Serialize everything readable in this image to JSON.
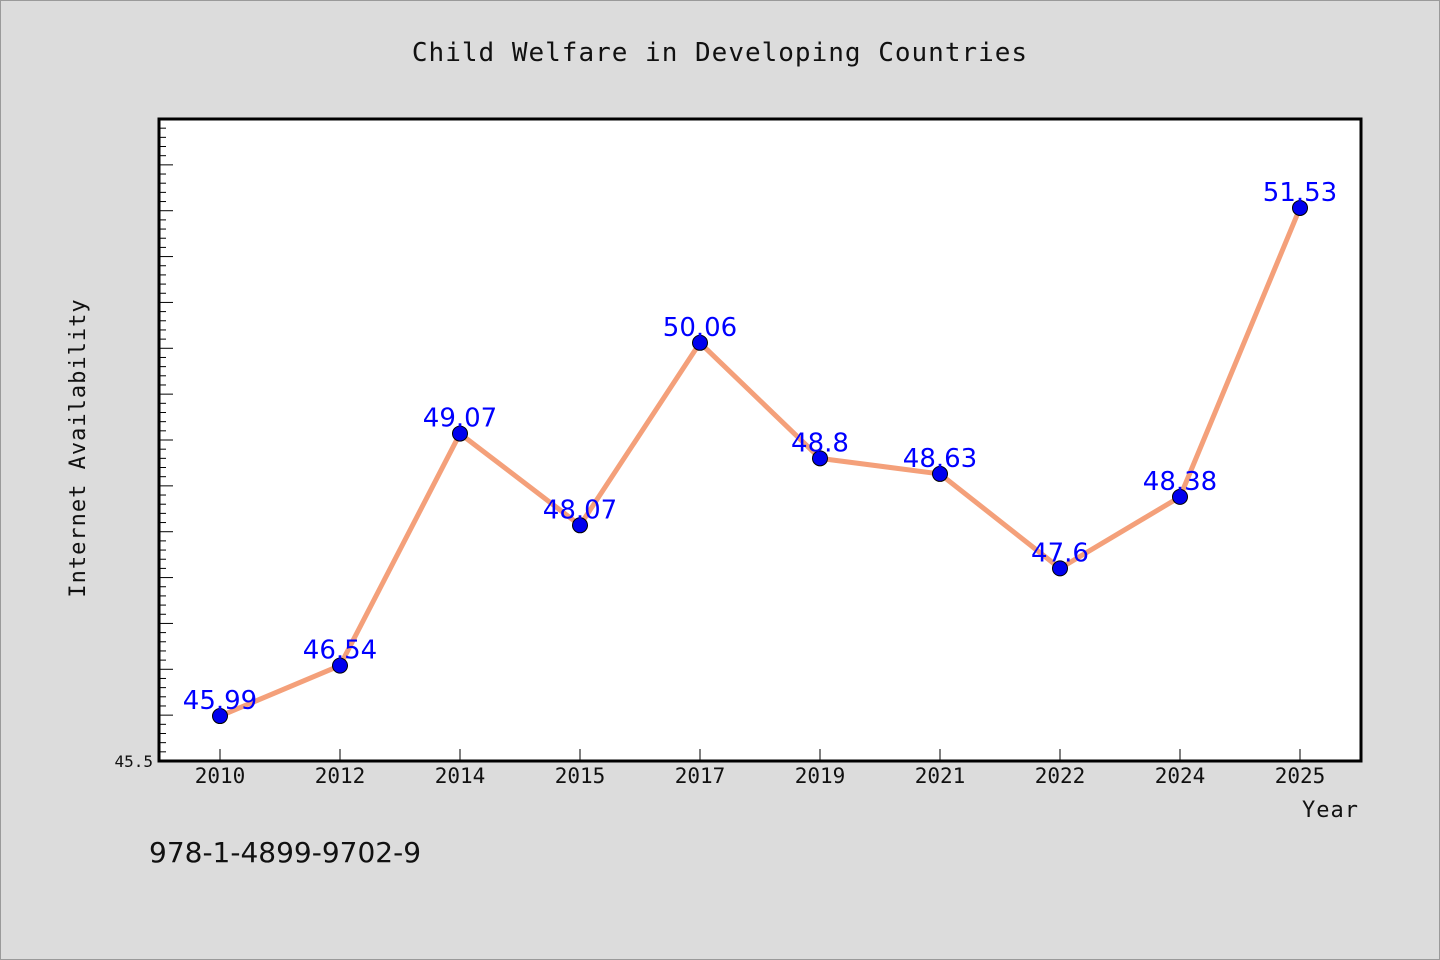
{
  "chart_data": {
    "type": "line",
    "title": "Child Welfare in Developing Countries",
    "xlabel": "Year",
    "ylabel": "Internet Availability",
    "categories": [
      "2010",
      "2012",
      "2014",
      "2015",
      "2017",
      "2019",
      "2021",
      "2022",
      "2024",
      "2025"
    ],
    "series": [
      {
        "name": "",
        "values": [
          45.99,
          46.54,
          49.07,
          48.07,
          50.06,
          48.8,
          48.63,
          47.6,
          48.38,
          51.53
        ],
        "labels": [
          "45.99",
          "46.54",
          "49.07",
          "48.07",
          "50.06",
          "48.8",
          "48.63",
          "47.6",
          "48.38",
          "51.53"
        ]
      }
    ],
    "ylim": [
      45.5,
      52.5
    ],
    "ymin_label": "45.5",
    "grid": false,
    "line_color": "#f4a07a",
    "marker_color": "#0000ee",
    "label_color": "#0000ff"
  },
  "footer": {
    "isbn": "978-1-4899-9702-9"
  }
}
